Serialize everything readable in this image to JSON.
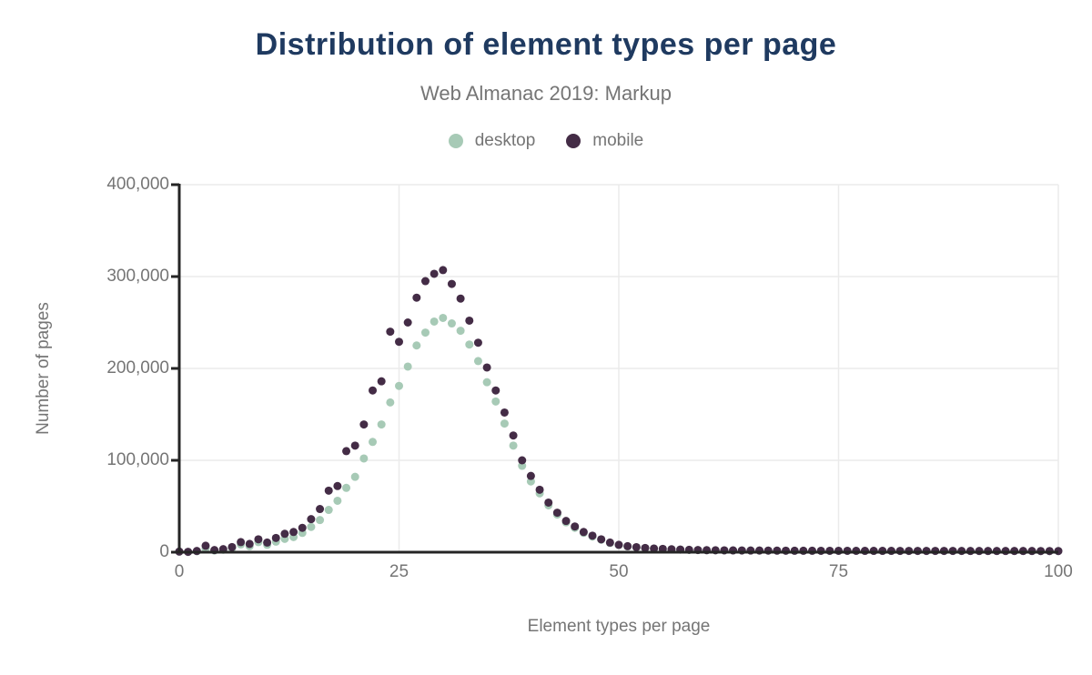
{
  "header": {
    "title": "Distribution of element types per page",
    "subtitle": "Web Almanac 2019: Markup"
  },
  "colors": {
    "title": "#1f3a60",
    "muted_text": "#757575",
    "axis": "#252525",
    "gridline": "#ebebeb",
    "desktop": "#a7cab6",
    "mobile": "#442c46",
    "background": "#ffffff"
  },
  "chart_data": {
    "type": "scatter",
    "title": "Distribution of element types per page",
    "subtitle": "Web Almanac 2019: Markup",
    "xlabel": "Element types per page",
    "ylabel": "Number of pages",
    "xlim": [
      0,
      100
    ],
    "ylim": [
      0,
      400000
    ],
    "grid": true,
    "legend_position": "top-center",
    "x_ticks": [
      {
        "value": 0,
        "label": "0"
      },
      {
        "value": 25,
        "label": "25"
      },
      {
        "value": 50,
        "label": "50"
      },
      {
        "value": 75,
        "label": "75"
      },
      {
        "value": 100,
        "label": "100"
      }
    ],
    "y_ticks": [
      {
        "value": 0,
        "label": "0"
      },
      {
        "value": 100000,
        "label": "100,000"
      },
      {
        "value": 200000,
        "label": "200,000"
      },
      {
        "value": 300000,
        "label": "300,000"
      },
      {
        "value": 400000,
        "label": "400,000"
      }
    ],
    "x_min": 0,
    "x_step": 1,
    "series": [
      {
        "name": "desktop",
        "color": "#a7cab6",
        "values": [
          500,
          300,
          1000,
          4000,
          1800,
          2600,
          4500,
          8500,
          6500,
          11000,
          8000,
          11500,
          14500,
          16500,
          21000,
          27500,
          35000,
          46000,
          56000,
          70000,
          82000,
          102000,
          120000,
          139000,
          163000,
          181000,
          202000,
          225000,
          239000,
          251000,
          255000,
          249000,
          241000,
          226000,
          208000,
          185000,
          164000,
          140000,
          116000,
          94000,
          77000,
          64000,
          51000,
          41000,
          32500,
          26500,
          21000,
          17000,
          13500,
          10000,
          7800,
          6300,
          5300,
          4400,
          3900,
          3500,
          3100,
          2800,
          2500,
          2300,
          2100,
          2000,
          1950,
          1900,
          1850,
          1800,
          1750,
          1700,
          1650,
          1600,
          1550,
          1530,
          1510,
          1490,
          1470,
          1450,
          1440,
          1430,
          1420,
          1410,
          1400,
          1390,
          1380,
          1370,
          1360,
          1350,
          1340,
          1330,
          1320,
          1310,
          1300,
          1290,
          1280,
          1270,
          1260,
          1250,
          1240,
          1230,
          1220,
          1210,
          1200
        ]
      },
      {
        "name": "mobile",
        "color": "#442c46",
        "values": [
          700,
          400,
          1300,
          7000,
          2300,
          3300,
          5600,
          11000,
          9000,
          14000,
          10500,
          15500,
          20000,
          22000,
          26500,
          36000,
          47000,
          67000,
          72000,
          110000,
          116000,
          139000,
          176000,
          186000,
          240000,
          229000,
          250000,
          277000,
          295000,
          303000,
          307000,
          292000,
          276000,
          252000,
          228000,
          201000,
          176000,
          152000,
          127000,
          100000,
          83000,
          68000,
          54000,
          43000,
          34000,
          28000,
          22000,
          18000,
          14000,
          10500,
          8000,
          6500,
          5500,
          4600,
          4000,
          3600,
          3200,
          2900,
          2600,
          2400,
          2200,
          2100,
          2000,
          1950,
          1900,
          1850,
          1800,
          1750,
          1700,
          1650,
          1600,
          1580,
          1560,
          1540,
          1520,
          1500,
          1500,
          1480,
          1460,
          1450,
          1440,
          1430,
          1420,
          1410,
          1400,
          1400,
          1390,
          1380,
          1370,
          1360,
          1350,
          1350,
          1340,
          1330,
          1320,
          1310,
          1300,
          1300,
          1290,
          1280,
          1270
        ]
      }
    ]
  }
}
